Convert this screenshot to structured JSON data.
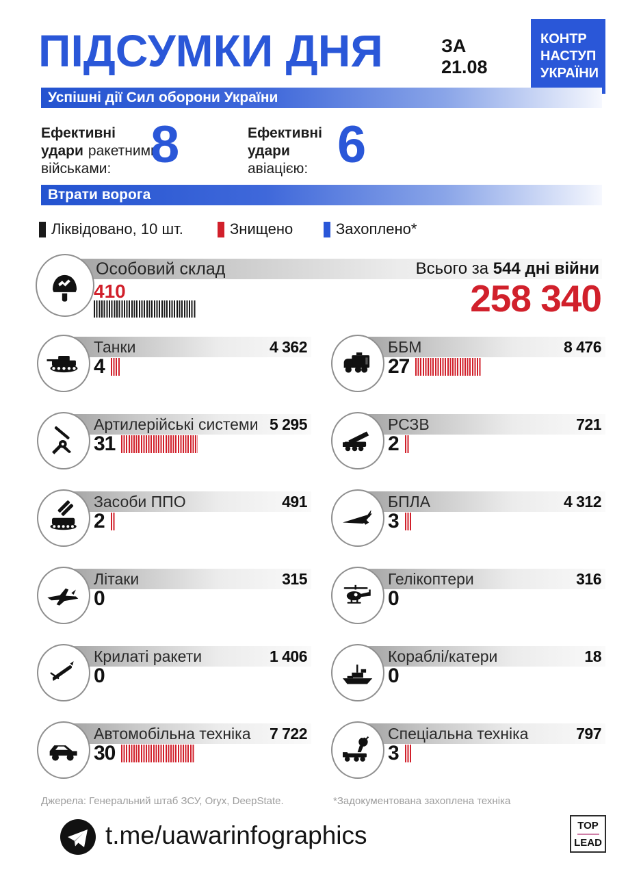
{
  "page": {
    "accent_blue": "#2a57d8",
    "accent_red": "#d1202b",
    "tick_black": "#1a1a1a"
  },
  "header": {
    "title": "ПІДСУМКИ ДНЯ",
    "date_label": "ЗА",
    "date_value": "21.08",
    "badge_lines": [
      "КОНТР",
      "НАСТУП",
      "УКРАЇНИ"
    ]
  },
  "section_success": {
    "bar_label": "Успішні дії Сил оборони України",
    "strikes": [
      {
        "line1": "Ефективні",
        "line2_bold": "удари",
        "line2_rest": "ракетними",
        "line3": "військами:",
        "value": "8"
      },
      {
        "line1": "Ефективні",
        "line2_bold": "удари",
        "line2_rest": "",
        "line3": "авіацією:",
        "value": "6"
      }
    ]
  },
  "section_losses": {
    "bar_label": "Втрати ворога",
    "legend": [
      {
        "label": "Ліквідовано, 10 шт.",
        "color": "#1a1a1a"
      },
      {
        "label": "Знищено",
        "color": "#d1202b"
      },
      {
        "label": "Захоплено*",
        "color": "#2a57d8"
      }
    ]
  },
  "personnel": {
    "icon": "helmet-icon",
    "label": "Особовий склад",
    "total_prefix": "Всього за ",
    "total_bold": "544 дні війни",
    "daily": "410",
    "daily_ticks": 41,
    "total_value": "258 340"
  },
  "items": [
    {
      "icon": "tank-icon",
      "label": "Танки",
      "total": "4 362",
      "daily": "4",
      "ticks": 4
    },
    {
      "icon": "armored-vehicle-icon",
      "label": "ББМ",
      "total": "8 476",
      "daily": "27",
      "ticks": 27
    },
    {
      "icon": "artillery-icon",
      "label": "Артилерійські системи",
      "total": "5 295",
      "daily": "31",
      "ticks": 31
    },
    {
      "icon": "mlrs-icon",
      "label": "РСЗВ",
      "total": "721",
      "daily": "2",
      "ticks": 2
    },
    {
      "icon": "air-defense-icon",
      "label": "Засоби ППО",
      "total": "491",
      "daily": "2",
      "ticks": 2
    },
    {
      "icon": "drone-icon",
      "label": "БПЛА",
      "total": "4 312",
      "daily": "3",
      "ticks": 3
    },
    {
      "icon": "jet-icon",
      "label": "Літаки",
      "total": "315",
      "daily": "0",
      "ticks": 0
    },
    {
      "icon": "helicopter-icon",
      "label": "Гелікоптери",
      "total": "316",
      "daily": "0",
      "ticks": 0
    },
    {
      "icon": "cruise-missile-icon",
      "label": "Крилаті ракети",
      "total": "1 406",
      "daily": "0",
      "ticks": 0
    },
    {
      "icon": "ship-icon",
      "label": "Кораблі/катери",
      "total": "18",
      "daily": "0",
      "ticks": 0
    },
    {
      "icon": "vehicle-icon",
      "label": "Автомобільна техніка",
      "total": "7 722",
      "daily": "30",
      "ticks": 30
    },
    {
      "icon": "special-equipment-icon",
      "label": "Спеціальна техніка",
      "total": "797",
      "daily": "3",
      "ticks": 3
    }
  ],
  "footer": {
    "sources": "Джерела: Генеральний штаб ЗСУ, Oryx, DeepState.",
    "note": "*Задокументована захоплена техніка"
  },
  "bottom": {
    "channel": "t.me/uawarinfographics",
    "brand_top": "TOP",
    "brand_bottom": "LEAD"
  },
  "chart_data": {
    "type": "bar",
    "title": "Підсумки дня за 21.08 — Втрати ворога (544 дні війни)",
    "categories": [
      "Особовий склад",
      "Танки",
      "ББМ",
      "Артилерійські системи",
      "РСЗВ",
      "Засоби ППО",
      "БПЛА",
      "Літаки",
      "Гелікоптери",
      "Крилаті ракети",
      "Кораблі/катери",
      "Автомобільна техніка",
      "Спеціальна техніка"
    ],
    "series": [
      {
        "name": "За день (21.08)",
        "values": [
          410,
          4,
          27,
          31,
          2,
          2,
          3,
          0,
          0,
          0,
          0,
          30,
          3
        ]
      },
      {
        "name": "Всього за 544 дні війни",
        "values": [
          258340,
          4362,
          8476,
          5295,
          721,
          491,
          4312,
          315,
          316,
          1406,
          18,
          7722,
          797
        ]
      }
    ],
    "legend_entries": [
      "Ліквідовано, 10 шт.",
      "Знищено",
      "Захоплено*"
    ],
    "annotations": [
      "Ефективні удари ракетними військами: 8",
      "Ефективні удари авіацією: 6"
    ],
    "tally_unit_personnel": 10,
    "grid": false,
    "legend_position": "top"
  }
}
